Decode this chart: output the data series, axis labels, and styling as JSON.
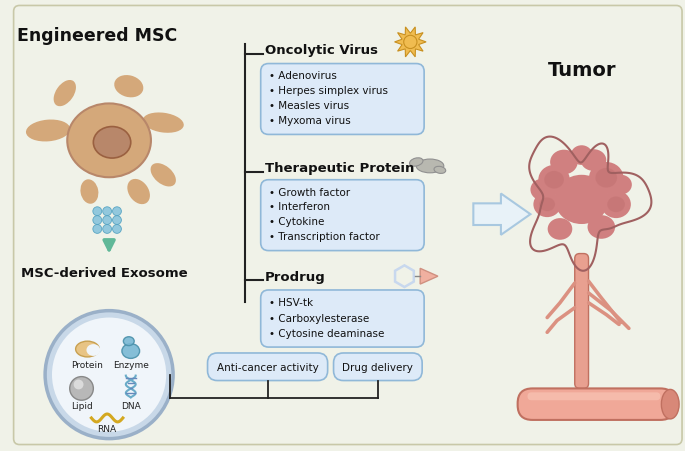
{
  "bg_color": "#f0f2e8",
  "engineered_msc_label": "Engineered MSC",
  "msc_exosome_label": "MSC-derived Exosome",
  "tumor_label": "Tumor",
  "oncolytic_virus_label": "Oncolytic Virus",
  "oncolytic_items": [
    "• Adenovirus",
    "• Herpes simplex virus",
    "• Measles virus",
    "• Myxoma virus"
  ],
  "therapeutic_protein_label": "Therapeutic Protein",
  "therapeutic_items": [
    "• Growth factor",
    "• Interferon",
    "• Cytokine",
    "• Transcription factor"
  ],
  "prodrug_label": "Prodrug",
  "prodrug_items": [
    "• HSV-tk",
    "• Carboxylesterase",
    "• Cytosine deaminase"
  ],
  "anticancer_label": "Anti-cancer activity",
  "drug_delivery_label": "Drug delivery",
  "box_bg": "#ddeaf8",
  "box_border": "#90b8d8",
  "arrow_fill": "#e8f2f8",
  "arrow_edge": "#a8c8e0",
  "line_color": "#222222",
  "cell_body_color": "#d4a87a",
  "cell_nucleus_color": "#b8876a",
  "exosome_outer": "#c8d8e8",
  "exosome_inner": "#f0f5fa",
  "exosome_border": "#9ab0c8",
  "protein_color": "#e8c485",
  "enzyme_color": "#7ab8d4",
  "lipid_color": "#b8b8b8",
  "dna_color": "#6aacc8",
  "rna_color": "#d4a820",
  "drop_color": "#88c4dc",
  "tumor_main": "#d08080",
  "tumor_lobe": "#c07070",
  "tumor_dark": "#a06060",
  "vessel_color": "#f0a898",
  "vessel_edge": "#c07060",
  "trunk_color": "#e8a090",
  "virus_color": "#f0bc50",
  "virus_edge": "#c89020",
  "hexagon_color": "#c8d8ee",
  "triangle_color": "#f0b0a0",
  "protein_icon_color": "#b8b8b0"
}
